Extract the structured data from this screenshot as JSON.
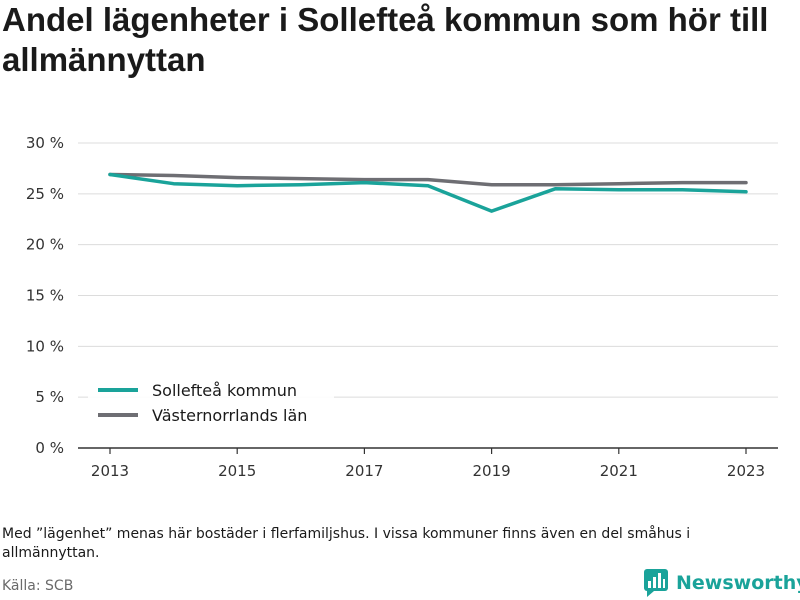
{
  "title": "Andel lägenheter i Sollefteå kommun som hör till allmännyttan",
  "note": "Med ”lägenhet” menas här bostäder i flerfamiljshus. I vissa kommuner finns även en del småhus i allmännyttan.",
  "source": "Källa: SCB",
  "brand": {
    "name": "Newsworthy",
    "icon": "bar-chart-logo-icon"
  },
  "colors": {
    "series1": "#1aa39a",
    "series2": "#6e6e73",
    "grid": "#dcdcdc",
    "axis": "#333333"
  },
  "chart_data": {
    "type": "line",
    "title": "Andel lägenheter i Sollefteå kommun som hör till allmännyttan",
    "xlabel": "",
    "ylabel": "",
    "x": [
      2013,
      2014,
      2015,
      2016,
      2017,
      2018,
      2019,
      2020,
      2021,
      2022,
      2023
    ],
    "x_ticks": [
      2013,
      2015,
      2017,
      2019,
      2021,
      2023
    ],
    "y_ticks": [
      0,
      5,
      10,
      15,
      20,
      25,
      30
    ],
    "y_tick_suffix": " %",
    "ylim": [
      0,
      30
    ],
    "grid": true,
    "legend_position": "bottom-left",
    "series": [
      {
        "name": "Sollefteå kommun",
        "color": "#1aa39a",
        "values": [
          26.9,
          26.0,
          25.8,
          25.9,
          26.1,
          25.8,
          23.3,
          25.5,
          25.4,
          25.4,
          25.2
        ]
      },
      {
        "name": "Västernorrlands län",
        "color": "#6e6e73",
        "values": [
          26.9,
          26.8,
          26.6,
          26.5,
          26.4,
          26.4,
          25.9,
          25.9,
          26.0,
          26.1,
          26.1
        ]
      }
    ]
  }
}
